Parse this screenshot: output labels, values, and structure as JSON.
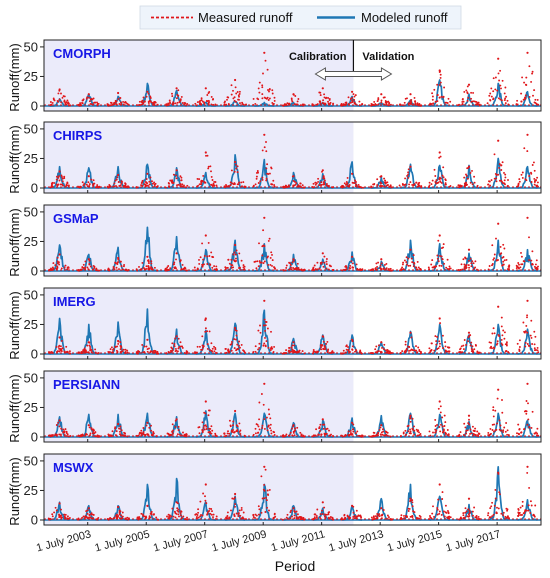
{
  "legend": {
    "measured_label": "Measured runoff",
    "modeled_label": "Modeled runoff"
  },
  "colors": {
    "measured": "#e0161a",
    "modeled": "#1f77b4",
    "calibration_shade": "#ebebfa",
    "panel_title": "#1717e6",
    "legend_bg": "#eef4fb"
  },
  "annotations": {
    "calibration": "Calibration",
    "validation": "Validation",
    "arrow_icon": "double-headed-arrow-icon"
  },
  "axis": {
    "ylabel": "Runoff(mm)",
    "xlabel": "Period",
    "yticks": [
      0,
      25,
      50
    ],
    "ylim": [
      0,
      55
    ],
    "xlim": [
      "2002-01-01",
      "2018-12-31"
    ],
    "xticks": [
      "1 July 2003",
      "1 July 2005",
      "1 July 2007",
      "1 July 2009",
      "1 July 2011",
      "1 July 2013",
      "1 July 2015",
      "1 July 2017"
    ],
    "xtick_dates": [
      "2003-07-01",
      "2005-07-01",
      "2007-07-01",
      "2009-07-01",
      "2011-07-01",
      "2013-07-01",
      "2015-07-01",
      "2017-07-01"
    ],
    "calibration_period": [
      "2002-01-01",
      "2012-08-01"
    ]
  },
  "chart_data": [
    {
      "type": "line",
      "title": "CMORPH",
      "xlabel": "Period",
      "ylabel": "Runoff(mm)",
      "ylim": [
        0,
        55
      ],
      "series": [
        {
          "name": "Measured runoff",
          "x": [
            "2002-07-15",
            "2003-07-15",
            "2004-07-15",
            "2005-07-15",
            "2006-07-15",
            "2007-07-15",
            "2008-07-15",
            "2009-07-15",
            "2010-07-15",
            "2011-07-15",
            "2012-07-15",
            "2013-07-15",
            "2014-07-15",
            "2015-07-15",
            "2016-07-15",
            "2017-07-15",
            "2018-07-15"
          ],
          "values": [
            14,
            10,
            11,
            12,
            15,
            15,
            22,
            45,
            10,
            15,
            12,
            10,
            10,
            30,
            18,
            40,
            45
          ]
        },
        {
          "name": "Modeled runoff",
          "x": [
            "2002-07-15",
            "2003-07-15",
            "2004-07-15",
            "2005-07-15",
            "2006-07-15",
            "2007-07-15",
            "2008-07-15",
            "2009-07-15",
            "2010-07-15",
            "2011-07-15",
            "2012-07-15",
            "2013-07-15",
            "2014-07-15",
            "2015-07-15",
            "2016-07-15",
            "2017-07-15",
            "2018-07-15"
          ],
          "values": [
            6,
            10,
            8,
            19,
            13,
            3,
            4,
            3,
            3,
            3,
            8,
            3,
            5,
            22,
            10,
            19,
            12
          ]
        }
      ]
    },
    {
      "type": "line",
      "title": "CHIRPS",
      "xlabel": "Period",
      "ylabel": "Runoff(mm)",
      "ylim": [
        0,
        55
      ],
      "series": [
        {
          "name": "Measured runoff",
          "x": [
            "2002-07-15",
            "2003-07-15",
            "2004-07-15",
            "2005-07-15",
            "2006-07-15",
            "2007-07-15",
            "2008-07-15",
            "2009-07-15",
            "2010-07-15",
            "2011-07-15",
            "2012-07-15",
            "2013-07-15",
            "2014-07-15",
            "2015-07-15",
            "2016-07-15",
            "2017-07-15",
            "2018-07-15"
          ],
          "values": [
            14,
            10,
            11,
            12,
            15,
            30,
            22,
            45,
            10,
            15,
            12,
            10,
            18,
            30,
            18,
            40,
            45
          ]
        },
        {
          "name": "Modeled runoff",
          "x": [
            "2002-07-15",
            "2003-07-15",
            "2004-07-15",
            "2005-07-15",
            "2006-07-15",
            "2007-07-15",
            "2008-07-15",
            "2009-07-15",
            "2010-07-15",
            "2011-07-15",
            "2012-07-15",
            "2013-07-15",
            "2014-07-15",
            "2015-07-15",
            "2016-07-15",
            "2017-07-15",
            "2018-07-15"
          ],
          "values": [
            18,
            17,
            18,
            20,
            17,
            13,
            28,
            24,
            13,
            12,
            22,
            9,
            20,
            19,
            19,
            25,
            18
          ]
        }
      ]
    },
    {
      "type": "line",
      "title": "GSMaP",
      "xlabel": "Period",
      "ylabel": "Runoff(mm)",
      "ylim": [
        0,
        55
      ],
      "series": [
        {
          "name": "Measured runoff",
          "x": [
            "2002-07-15",
            "2003-07-15",
            "2004-07-15",
            "2005-07-15",
            "2006-07-15",
            "2007-07-15",
            "2008-07-15",
            "2009-07-15",
            "2010-07-15",
            "2011-07-15",
            "2012-07-15",
            "2013-07-15",
            "2014-07-15",
            "2015-07-15",
            "2016-07-15",
            "2017-07-15",
            "2018-07-15"
          ],
          "values": [
            14,
            10,
            11,
            12,
            15,
            30,
            22,
            45,
            10,
            15,
            12,
            10,
            18,
            30,
            18,
            40,
            45
          ]
        },
        {
          "name": "Modeled runoff",
          "x": [
            "2002-07-15",
            "2003-07-15",
            "2004-07-15",
            "2005-07-15",
            "2006-07-15",
            "2007-07-15",
            "2008-07-15",
            "2009-07-15",
            "2010-07-15",
            "2011-07-15",
            "2012-07-15",
            "2013-07-15",
            "2014-07-15",
            "2015-07-15",
            "2016-07-15",
            "2017-07-15",
            "2018-07-15"
          ],
          "values": [
            22,
            14,
            20,
            37,
            29,
            18,
            26,
            23,
            14,
            10,
            16,
            8,
            26,
            23,
            15,
            26,
            18
          ]
        }
      ]
    },
    {
      "type": "line",
      "title": "IMERG",
      "xlabel": "Period",
      "ylabel": "Runoff(mm)",
      "ylim": [
        0,
        55
      ],
      "series": [
        {
          "name": "Measured runoff",
          "x": [
            "2002-07-15",
            "2003-07-15",
            "2004-07-15",
            "2005-07-15",
            "2006-07-15",
            "2007-07-15",
            "2008-07-15",
            "2009-07-15",
            "2010-07-15",
            "2011-07-15",
            "2012-07-15",
            "2013-07-15",
            "2014-07-15",
            "2015-07-15",
            "2016-07-15",
            "2017-07-15",
            "2018-07-15"
          ],
          "values": [
            14,
            10,
            11,
            12,
            15,
            30,
            22,
            45,
            10,
            15,
            12,
            10,
            18,
            30,
            18,
            40,
            45
          ]
        },
        {
          "name": "Modeled runoff",
          "x": [
            "2002-07-15",
            "2003-07-15",
            "2004-07-15",
            "2005-07-15",
            "2006-07-15",
            "2007-07-15",
            "2008-07-15",
            "2009-07-15",
            "2010-07-15",
            "2011-07-15",
            "2012-07-15",
            "2013-07-15",
            "2014-07-15",
            "2015-07-15",
            "2016-07-15",
            "2017-07-15",
            "2018-07-15"
          ],
          "values": [
            30,
            25,
            27,
            38,
            21,
            20,
            26,
            37,
            13,
            16,
            16,
            10,
            19,
            25,
            16,
            25,
            21
          ]
        }
      ]
    },
    {
      "type": "line",
      "title": "PERSIANN",
      "xlabel": "Period",
      "ylabel": "Runoff(mm)",
      "ylim": [
        0,
        55
      ],
      "series": [
        {
          "name": "Measured runoff",
          "x": [
            "2002-07-15",
            "2003-07-15",
            "2004-07-15",
            "2005-07-15",
            "2006-07-15",
            "2007-07-15",
            "2008-07-15",
            "2009-07-15",
            "2010-07-15",
            "2011-07-15",
            "2012-07-15",
            "2013-07-15",
            "2014-07-15",
            "2015-07-15",
            "2016-07-15",
            "2017-07-15",
            "2018-07-15"
          ],
          "values": [
            14,
            10,
            11,
            12,
            15,
            30,
            22,
            45,
            10,
            15,
            12,
            10,
            18,
            30,
            18,
            40,
            45
          ]
        },
        {
          "name": "Modeled runoff",
          "x": [
            "2002-07-15",
            "2003-07-15",
            "2004-07-15",
            "2005-07-15",
            "2006-07-15",
            "2007-07-15",
            "2008-07-15",
            "2009-07-15",
            "2010-07-15",
            "2011-07-15",
            "2012-07-15",
            "2013-07-15",
            "2014-07-15",
            "2015-07-15",
            "2016-07-15",
            "2017-07-15",
            "2018-07-15"
          ],
          "values": [
            17,
            19,
            19,
            20,
            17,
            22,
            20,
            20,
            12,
            14,
            16,
            18,
            20,
            19,
            13,
            20,
            14
          ]
        }
      ]
    },
    {
      "type": "line",
      "title": "MSWX",
      "xlabel": "Period",
      "ylabel": "Runoff(mm)",
      "ylim": [
        0,
        55
      ],
      "series": [
        {
          "name": "Measured runoff",
          "x": [
            "2002-07-15",
            "2003-07-15",
            "2004-07-15",
            "2005-07-15",
            "2006-07-15",
            "2007-07-15",
            "2008-07-15",
            "2009-07-15",
            "2010-07-15",
            "2011-07-15",
            "2012-07-15",
            "2013-07-15",
            "2014-07-15",
            "2015-07-15",
            "2016-07-15",
            "2017-07-15",
            "2018-07-15"
          ],
          "values": [
            14,
            10,
            11,
            12,
            15,
            30,
            22,
            45,
            10,
            15,
            12,
            10,
            18,
            30,
            18,
            40,
            45
          ]
        },
        {
          "name": "Modeled runoff",
          "x": [
            "2002-07-15",
            "2003-07-15",
            "2004-07-15",
            "2005-07-15",
            "2006-07-15",
            "2007-07-15",
            "2008-07-15",
            "2009-07-15",
            "2010-07-15",
            "2011-07-15",
            "2012-07-15",
            "2013-07-15",
            "2014-07-15",
            "2015-07-15",
            "2016-07-15",
            "2017-07-15",
            "2018-07-15"
          ],
          "values": [
            15,
            12,
            12,
            30,
            35,
            15,
            20,
            30,
            12,
            10,
            12,
            18,
            30,
            20,
            13,
            45,
            17
          ]
        }
      ]
    }
  ]
}
